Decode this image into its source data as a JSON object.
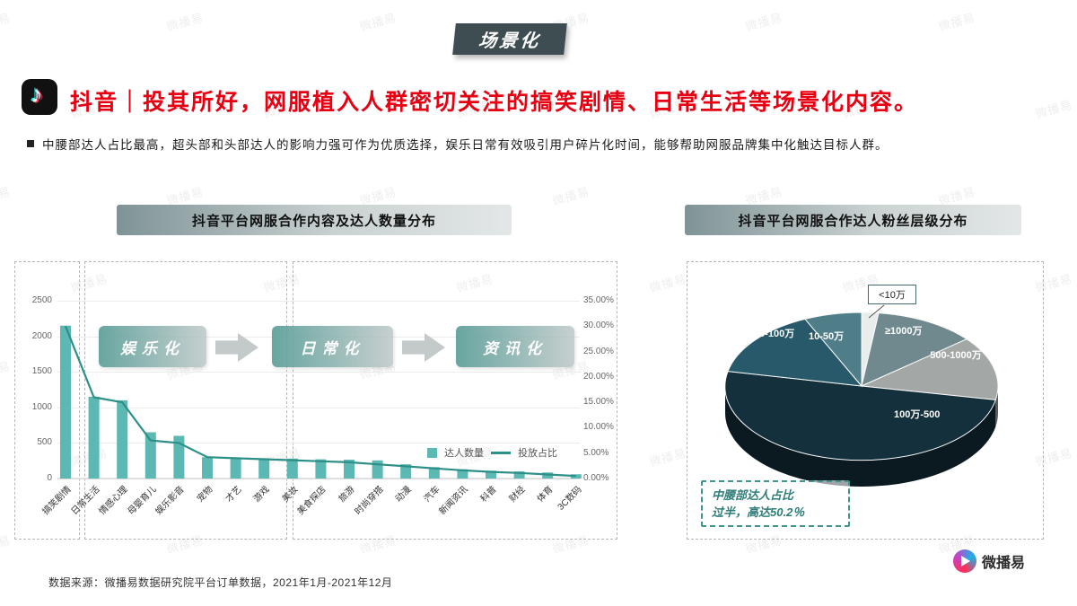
{
  "watermark": {
    "text": "微播易"
  },
  "badge": {
    "label": "场景化"
  },
  "header": {
    "title": "抖音｜投其所好，网服植入人群密切关注的搞笑剧情、日常生活等场景化内容。",
    "bullet": "中腰部达人占比最高，超头部和头部达人的影响力强可作为优质选择，娱乐日常有效吸引用户碎片化时间，能够帮助网服品牌集中化触达目标人群。"
  },
  "left_panel": {
    "title": "抖音平台网服合作内容及达人数量分布",
    "stages": [
      {
        "label": "娱乐化"
      },
      {
        "label": "日常化"
      },
      {
        "label": "资讯化"
      }
    ]
  },
  "right_panel": {
    "title": "抖音平台网服合作达人粉丝层级分布",
    "note_line1": "中腰部达人占比",
    "note_line2": "过半，高达50.2％"
  },
  "footer": {
    "source": "数据来源：微播易数据研究院平台订单数据，2021年1月-2021年12月",
    "brand": "微播易"
  },
  "chart_data": [
    {
      "type": "bar",
      "title": "抖音平台网服合作内容及达人数量分布",
      "categories": [
        "搞笑剧情",
        "日常生活",
        "情感心理",
        "母婴育儿",
        "娱乐影音",
        "宠物",
        "才艺",
        "游戏",
        "美妆",
        "美食探店",
        "旅游",
        "时尚穿搭",
        "动漫",
        "汽车",
        "新闻资讯",
        "科普",
        "财经",
        "体育",
        "3C数码"
      ],
      "series": [
        {
          "name": "达人数量",
          "type": "bar",
          "axis": "left",
          "values": [
            2150,
            1150,
            1100,
            650,
            600,
            300,
            290,
            285,
            280,
            270,
            265,
            255,
            200,
            160,
            130,
            110,
            100,
            85,
            60
          ]
        },
        {
          "name": "投放占比",
          "type": "line",
          "axis": "right",
          "values": [
            30,
            16,
            15,
            7.5,
            7,
            4.2,
            4,
            3.8,
            3.6,
            3.4,
            3.2,
            2.8,
            2.4,
            2,
            1.6,
            1.3,
            1.1,
            0.8,
            0.5
          ]
        }
      ],
      "left_axis": {
        "ticks": [
          "0",
          "500",
          "1000",
          "1500",
          "2000",
          "2500"
        ],
        "max": 2500
      },
      "right_axis": {
        "ticks": [
          "0.00%",
          "5.00%",
          "10.00%",
          "15.00%",
          "20.00%",
          "25.00%",
          "30.00%",
          "35.00%"
        ],
        "max": 35
      },
      "colors": {
        "bar": "#5cb8b2",
        "line": "#2e8f88"
      },
      "legend_position": "bottom-right",
      "grid": true
    },
    {
      "type": "pie",
      "title": "抖音平台网服合作达人粉丝层级分布",
      "slices": [
        {
          "label": "<10万",
          "value": 2.0,
          "color": "#e9edec"
        },
        {
          "label": "≥1000万",
          "value": 12.0,
          "color": "#70898e"
        },
        {
          "label": "500-1000万",
          "value": 14.0,
          "color": "#a3a8a6"
        },
        {
          "label": "100万-500",
          "value": 50.2,
          "color": "#14303c"
        },
        {
          "label": "50-100万",
          "value": 15.0,
          "color": "#27596a"
        },
        {
          "label": "10-50万",
          "value": 6.8,
          "color": "#4f7d88"
        }
      ],
      "annotation": "中腰部达人占比过半，高达50.2％"
    }
  ]
}
